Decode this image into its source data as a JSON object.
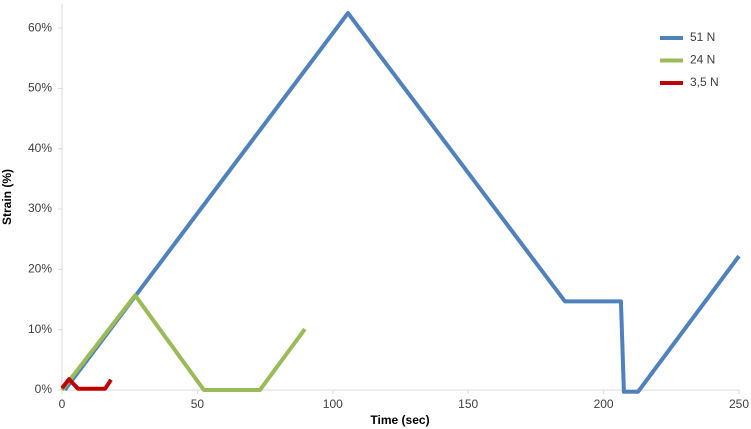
{
  "chart_data": {
    "type": "line",
    "x_label": "Time (sec)",
    "y_label": "Strain (%)",
    "xlim": [
      0,
      250
    ],
    "xticks": [
      0,
      50,
      100,
      150,
      200,
      250
    ],
    "ylim": [
      0,
      64
    ],
    "yticks": [
      {
        "value": 0,
        "label": "0%"
      },
      {
        "value": 10,
        "label": "10%"
      },
      {
        "value": 20,
        "label": "20%"
      },
      {
        "value": 30,
        "label": "30%"
      },
      {
        "value": 40,
        "label": "40%"
      },
      {
        "value": 50,
        "label": "50%"
      },
      {
        "value": 60,
        "label": "60%"
      }
    ],
    "legend": "top-right",
    "series": [
      {
        "name": "51 N",
        "color": "#4f81bd",
        "x": [
          1,
          105.6,
          185.7,
          206.4,
          207.5,
          212.7,
          250
        ],
        "values": [
          0,
          62.5,
          14.7,
          14.7,
          -0.3,
          -0.3,
          22.2
        ]
      },
      {
        "name": "24 N",
        "color": "#9bbb59",
        "x": [
          0,
          27,
          52.4,
          73.1,
          89.7
        ],
        "values": [
          0,
          15.7,
          0,
          0,
          10.1
        ]
      },
      {
        "name": "3,5 N",
        "color": "#c00000",
        "x": [
          0,
          2.6,
          5.9,
          15.9,
          18.1
        ],
        "values": [
          0.3,
          1.8,
          0.2,
          0.2,
          1.7
        ]
      }
    ]
  }
}
